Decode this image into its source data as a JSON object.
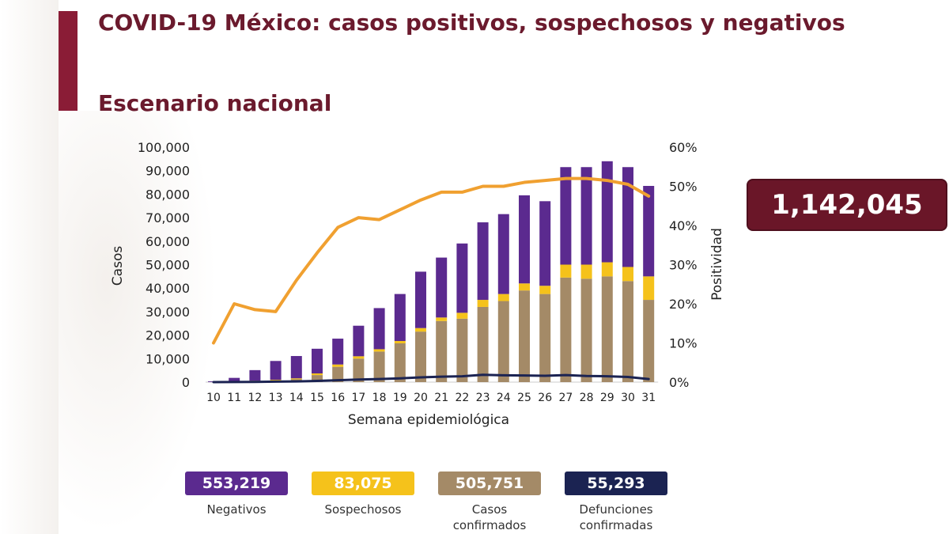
{
  "header": {
    "title": "COVID-19 México: casos positivos, sospechosos y negativos",
    "subtitle": "Escenario nacional"
  },
  "total": "1,142,045",
  "legend": [
    {
      "value": "553,219",
      "label": "Negativos",
      "color": "#5b2a8f",
      "text_color": "#ffffff"
    },
    {
      "value": "83,075",
      "label": "Sospechosos",
      "color": "#f5c21b",
      "text_color": "#ffffff"
    },
    {
      "value": "505,751",
      "label": "Casos confirmados",
      "color": "#a48a67",
      "text_color": "#ffffff"
    },
    {
      "value": "55,293",
      "label": "Defunciones confirmadas",
      "color": "#1b2352",
      "text_color": "#ffffff"
    }
  ],
  "chart_data": {
    "type": "bar",
    "stacked": true,
    "xlabel": "Semana epidemiológica",
    "ylabel": "Casos",
    "y2label": "Positividad",
    "ylim": [
      0,
      100000
    ],
    "y2lim": [
      0,
      60
    ],
    "yticks": [
      "0",
      "10,000",
      "20,000",
      "30,000",
      "40,000",
      "50,000",
      "60,000",
      "70,000",
      "80,000",
      "90,000",
      "100,000"
    ],
    "y2ticks": [
      "0%",
      "10%",
      "20%",
      "30%",
      "40%",
      "50%",
      "60%"
    ],
    "categories": [
      "10",
      "11",
      "12",
      "13",
      "14",
      "15",
      "16",
      "17",
      "18",
      "19",
      "20",
      "21",
      "22",
      "23",
      "24",
      "25",
      "26",
      "27",
      "28",
      "29",
      "30",
      "31"
    ],
    "series": [
      {
        "name": "Casos confirmados",
        "color": "#a48a67",
        "values": [
          0,
          200,
          400,
          700,
          1200,
          3000,
          6500,
          10000,
          13000,
          16500,
          21500,
          26000,
          27000,
          32000,
          34500,
          39000,
          37500,
          44500,
          44000,
          45000,
          43000,
          35000
        ]
      },
      {
        "name": "Sospechosos",
        "color": "#f5c21b",
        "values": [
          0,
          100,
          200,
          300,
          400,
          700,
          1000,
          1000,
          1000,
          1000,
          1500,
          1500,
          2500,
          3000,
          3000,
          3000,
          3500,
          5500,
          6000,
          6000,
          6000,
          10000
        ]
      },
      {
        "name": "Negativos",
        "color": "#5b2a8f",
        "values": [
          300,
          1500,
          4500,
          8000,
          9500,
          10500,
          11000,
          13000,
          17500,
          20000,
          24000,
          25500,
          29500,
          33000,
          34000,
          37500,
          36000,
          41500,
          41500,
          43000,
          42500,
          38500
        ]
      }
    ],
    "lines": [
      {
        "name": "Positividad",
        "axis": "right",
        "color": "#f0a030",
        "values": [
          10,
          20,
          18.5,
          18,
          26,
          33,
          39.5,
          42,
          41.5,
          44,
          46.5,
          48.5,
          48.5,
          50,
          50,
          51,
          51.5,
          52,
          52,
          51.5,
          50.5,
          47.5
        ]
      },
      {
        "name": "Defunciones confirmadas",
        "axis": "left",
        "color": "#1b2352",
        "values": [
          0,
          50,
          100,
          200,
          300,
          500,
          800,
          1100,
          1300,
          1600,
          2000,
          2300,
          2500,
          3100,
          2900,
          2800,
          2700,
          3000,
          2600,
          2500,
          2200,
          1300
        ]
      }
    ]
  }
}
